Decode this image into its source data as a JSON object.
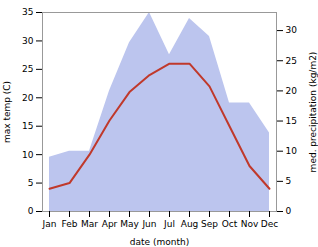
{
  "chart_data": {
    "type": "line",
    "categories": [
      "Jan",
      "Feb",
      "Mar",
      "Apr",
      "May",
      "Jun",
      "Jul",
      "Aug",
      "Sep",
      "Oct",
      "Nov",
      "Dec"
    ],
    "xlabel": "date (month)",
    "ylabel": "max temp (C)",
    "y2label": "med. precipitation (kg/m2)",
    "ylim": [
      0,
      35
    ],
    "yticks": [
      0,
      5,
      10,
      15,
      20,
      25,
      30,
      35
    ],
    "y2lim": [
      0,
      33
    ],
    "y2ticks": [
      0,
      5,
      10,
      15,
      20,
      25,
      30
    ],
    "series": [
      {
        "type": "area",
        "axis": "y2",
        "color": "#bcc5ee",
        "values": [
          9,
          10,
          10,
          20,
          28,
          33,
          26,
          32,
          29,
          18,
          18,
          13
        ]
      },
      {
        "type": "line",
        "color": "#c0392b",
        "values": [
          4,
          5,
          10,
          16,
          21,
          24,
          26,
          26,
          22,
          15,
          8,
          4
        ]
      }
    ]
  }
}
